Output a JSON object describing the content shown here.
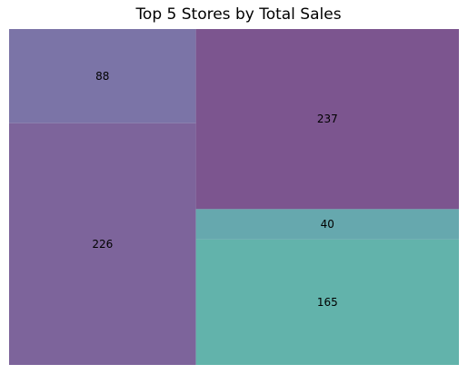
{
  "chart_data": {
    "type": "treemap",
    "title": "Top 5 Stores by Total Sales",
    "tiles": [
      {
        "label": "88",
        "value": 88,
        "color": "#7b74a7"
      },
      {
        "label": "226",
        "value": 226,
        "color": "#7d649b"
      },
      {
        "label": "237",
        "value": 237,
        "color": "#7c558f"
      },
      {
        "label": "40",
        "value": 40,
        "color": "#66a8ae"
      },
      {
        "label": "165",
        "value": 165,
        "color": "#62b3ab"
      }
    ],
    "axes": "off",
    "legend": "none"
  }
}
